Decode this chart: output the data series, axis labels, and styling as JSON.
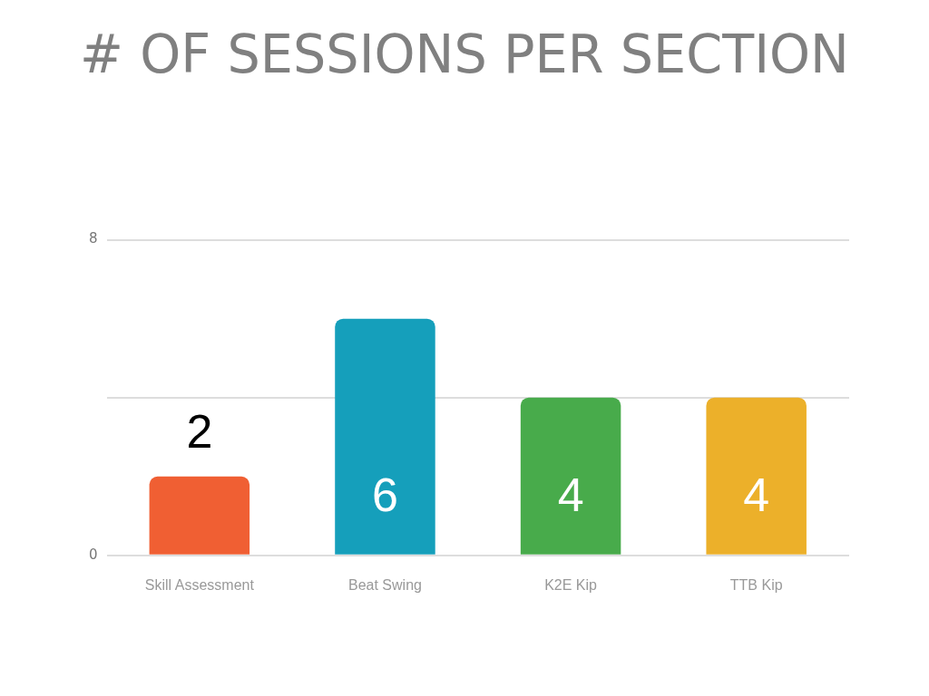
{
  "chart_data": {
    "type": "bar",
    "title": "# OF SESSIONS PER SECTION",
    "categories": [
      "Skill Assessment",
      "Beat Swing",
      "K2E Kip",
      "TTB Kip"
    ],
    "values": [
      2,
      6,
      4,
      4
    ],
    "colors": [
      "#f05f33",
      "#159fbb",
      "#48ab4b",
      "#ecb02a"
    ],
    "ylim": [
      0,
      8
    ],
    "yticks": [
      0,
      {
        "value": 4,
        "label": null
      },
      8
    ],
    "grid": "y",
    "legend": false,
    "data_labels": true
  }
}
